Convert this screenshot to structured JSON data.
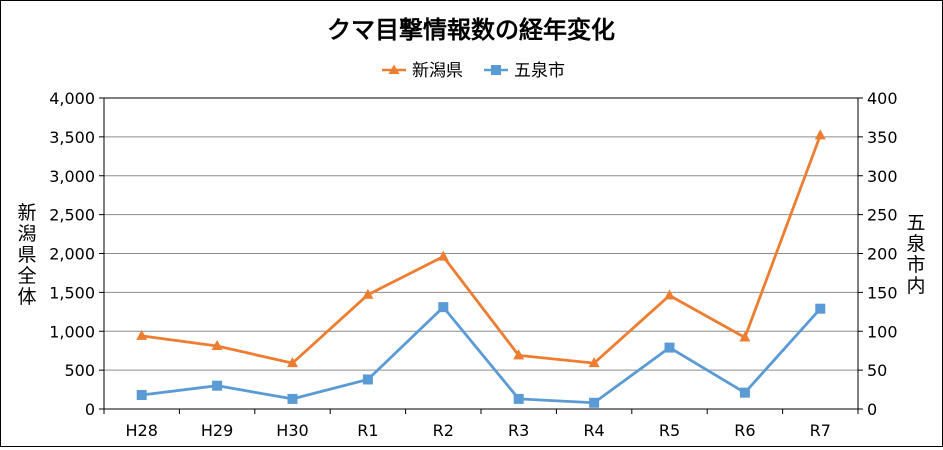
{
  "chart_data": {
    "type": "line",
    "title": "クマ目撃情報数の経年変化",
    "categories": [
      "H28",
      "H29",
      "H30",
      "R1",
      "R2",
      "R3",
      "R4",
      "R5",
      "R6",
      "R7"
    ],
    "series": [
      {
        "name": "新潟県",
        "axis": "left",
        "marker": "triangle",
        "color": "#ED7D31",
        "values": [
          940,
          810,
          590,
          1470,
          1960,
          690,
          590,
          1460,
          920,
          3520
        ]
      },
      {
        "name": "五泉市",
        "axis": "right",
        "marker": "square",
        "color": "#5B9BD5",
        "values": [
          18,
          30,
          13,
          38,
          131,
          13,
          8,
          79,
          21,
          129
        ]
      }
    ],
    "y_left": {
      "label": "新潟県全体",
      "ylim": [
        0,
        4000
      ],
      "ticks": [
        "0",
        "500",
        "1,000",
        "1,500",
        "2,000",
        "2,500",
        "3,000",
        "3,500",
        "4,000"
      ]
    },
    "y_right": {
      "label": "五泉市内",
      "ylim": [
        0,
        400
      ],
      "ticks": [
        "0",
        "50",
        "100",
        "150",
        "200",
        "250",
        "300",
        "350",
        "400"
      ]
    },
    "grid": true,
    "legend_position": "top-center"
  }
}
